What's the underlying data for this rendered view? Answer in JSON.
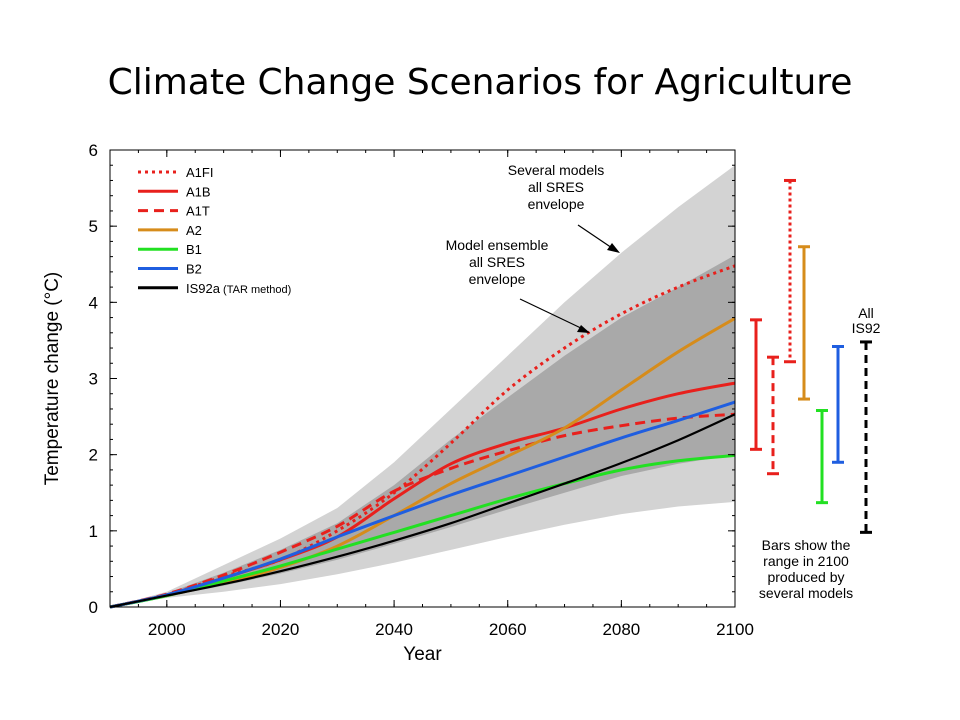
{
  "slide": {
    "title": "Climate Change Scenarios for Agriculture"
  },
  "chart_data": {
    "type": "line",
    "title": "",
    "xlabel": "Year",
    "ylabel": "Temperature change (°C)",
    "xlim": [
      1990,
      2100
    ],
    "ylim": [
      0,
      6
    ],
    "x_ticks": [
      2000,
      2020,
      2040,
      2060,
      2080,
      2100
    ],
    "y_ticks": [
      0,
      1,
      2,
      3,
      4,
      5,
      6
    ],
    "legend_position": "top-left",
    "series": [
      {
        "name": "A1FI",
        "color": "#e8201c",
        "dash": "dotted",
        "points": [
          [
            1990,
            0
          ],
          [
            2000,
            0.16
          ],
          [
            2010,
            0.4
          ],
          [
            2020,
            0.62
          ],
          [
            2030,
            1.0
          ],
          [
            2040,
            1.5
          ],
          [
            2050,
            2.15
          ],
          [
            2060,
            2.85
          ],
          [
            2070,
            3.4
          ],
          [
            2080,
            3.85
          ],
          [
            2090,
            4.2
          ],
          [
            2100,
            4.48
          ]
        ]
      },
      {
        "name": "A1B",
        "color": "#e8201c",
        "dash": "solid",
        "points": [
          [
            1990,
            0
          ],
          [
            2000,
            0.16
          ],
          [
            2010,
            0.38
          ],
          [
            2020,
            0.62
          ],
          [
            2030,
            0.92
          ],
          [
            2040,
            1.42
          ],
          [
            2050,
            1.88
          ],
          [
            2060,
            2.15
          ],
          [
            2070,
            2.35
          ],
          [
            2080,
            2.6
          ],
          [
            2090,
            2.8
          ],
          [
            2100,
            2.94
          ]
        ]
      },
      {
        "name": "A1T",
        "color": "#e8201c",
        "dash": "dashed",
        "points": [
          [
            1990,
            0
          ],
          [
            2000,
            0.17
          ],
          [
            2010,
            0.42
          ],
          [
            2020,
            0.72
          ],
          [
            2030,
            1.06
          ],
          [
            2040,
            1.52
          ],
          [
            2050,
            1.82
          ],
          [
            2060,
            2.05
          ],
          [
            2070,
            2.25
          ],
          [
            2080,
            2.38
          ],
          [
            2090,
            2.48
          ],
          [
            2100,
            2.53
          ]
        ]
      },
      {
        "name": "A2",
        "color": "#d68c1b",
        "dash": "solid",
        "points": [
          [
            1990,
            0
          ],
          [
            2000,
            0.15
          ],
          [
            2010,
            0.32
          ],
          [
            2020,
            0.52
          ],
          [
            2030,
            0.8
          ],
          [
            2040,
            1.2
          ],
          [
            2050,
            1.62
          ],
          [
            2060,
            1.98
          ],
          [
            2070,
            2.35
          ],
          [
            2080,
            2.85
          ],
          [
            2090,
            3.35
          ],
          [
            2100,
            3.79
          ]
        ]
      },
      {
        "name": "B1",
        "color": "#22e022",
        "dash": "solid",
        "points": [
          [
            1990,
            0
          ],
          [
            2000,
            0.15
          ],
          [
            2010,
            0.34
          ],
          [
            2020,
            0.54
          ],
          [
            2030,
            0.76
          ],
          [
            2040,
            0.98
          ],
          [
            2050,
            1.2
          ],
          [
            2060,
            1.42
          ],
          [
            2070,
            1.62
          ],
          [
            2080,
            1.8
          ],
          [
            2090,
            1.92
          ],
          [
            2100,
            1.99
          ]
        ]
      },
      {
        "name": "B2",
        "color": "#1f5ee0",
        "dash": "solid",
        "points": [
          [
            1990,
            0
          ],
          [
            2000,
            0.16
          ],
          [
            2010,
            0.38
          ],
          [
            2020,
            0.63
          ],
          [
            2030,
            0.92
          ],
          [
            2040,
            1.2
          ],
          [
            2050,
            1.47
          ],
          [
            2060,
            1.72
          ],
          [
            2070,
            1.97
          ],
          [
            2080,
            2.22
          ],
          [
            2090,
            2.45
          ],
          [
            2100,
            2.69
          ]
        ]
      },
      {
        "name": "IS92a",
        "legend_note": "(TAR method)",
        "color": "#000000",
        "dash": "solid",
        "points": [
          [
            1990,
            0
          ],
          [
            2000,
            0.15
          ],
          [
            2010,
            0.3
          ],
          [
            2020,
            0.47
          ],
          [
            2030,
            0.66
          ],
          [
            2040,
            0.87
          ],
          [
            2050,
            1.1
          ],
          [
            2060,
            1.36
          ],
          [
            2070,
            1.62
          ],
          [
            2080,
            1.89
          ],
          [
            2090,
            2.19
          ],
          [
            2100,
            2.53
          ]
        ]
      }
    ],
    "envelopes": [
      {
        "label": "Several models all SRES envelope",
        "color": "#d3d3d3",
        "upper": [
          [
            1990,
            0
          ],
          [
            2000,
            0.2
          ],
          [
            2010,
            0.55
          ],
          [
            2020,
            0.9
          ],
          [
            2030,
            1.3
          ],
          [
            2040,
            1.9
          ],
          [
            2050,
            2.6
          ],
          [
            2060,
            3.3
          ],
          [
            2070,
            4.0
          ],
          [
            2080,
            4.65
          ],
          [
            2090,
            5.25
          ],
          [
            2100,
            5.8
          ]
        ],
        "lower": [
          [
            1990,
            0
          ],
          [
            2000,
            0.12
          ],
          [
            2010,
            0.2
          ],
          [
            2020,
            0.3
          ],
          [
            2030,
            0.43
          ],
          [
            2040,
            0.58
          ],
          [
            2050,
            0.75
          ],
          [
            2060,
            0.92
          ],
          [
            2070,
            1.08
          ],
          [
            2080,
            1.22
          ],
          [
            2090,
            1.32
          ],
          [
            2100,
            1.38
          ]
        ]
      },
      {
        "label": "Model ensemble all SRES envelope",
        "color": "#a9a9a9",
        "upper": [
          [
            1990,
            0
          ],
          [
            2000,
            0.18
          ],
          [
            2010,
            0.45
          ],
          [
            2020,
            0.75
          ],
          [
            2030,
            1.1
          ],
          [
            2040,
            1.6
          ],
          [
            2050,
            2.2
          ],
          [
            2060,
            2.75
          ],
          [
            2070,
            3.3
          ],
          [
            2080,
            3.8
          ],
          [
            2090,
            4.2
          ],
          [
            2100,
            4.62
          ]
        ],
        "lower": [
          [
            1990,
            0
          ],
          [
            2000,
            0.14
          ],
          [
            2010,
            0.28
          ],
          [
            2020,
            0.44
          ],
          [
            2030,
            0.62
          ],
          [
            2040,
            0.83
          ],
          [
            2050,
            1.05
          ],
          [
            2060,
            1.28
          ],
          [
            2070,
            1.5
          ],
          [
            2080,
            1.72
          ],
          [
            2090,
            1.88
          ],
          [
            2100,
            2.0
          ]
        ]
      }
    ],
    "range_bars_2100": [
      {
        "series": "A1B",
        "color": "#e8201c",
        "dash": "solid",
        "low": 2.07,
        "high": 3.77
      },
      {
        "series": "A1T",
        "color": "#e8201c",
        "dash": "dashed",
        "low": 1.75,
        "high": 3.28
      },
      {
        "series": "A1FI",
        "color": "#e8201c",
        "dash": "dotted",
        "low": 3.22,
        "high": 5.6
      },
      {
        "series": "A2",
        "color": "#d68c1b",
        "dash": "solid",
        "low": 2.73,
        "high": 4.73
      },
      {
        "series": "B1",
        "color": "#22e022",
        "dash": "solid",
        "low": 1.37,
        "high": 2.58
      },
      {
        "series": "B2",
        "color": "#1f5ee0",
        "dash": "solid",
        "low": 1.9,
        "high": 3.42
      },
      {
        "series": "All IS92",
        "color": "#000000",
        "dash": "dashed",
        "low": 0.98,
        "high": 3.48
      }
    ],
    "annotations": {
      "several_models": [
        "Several models",
        "all SRES",
        "envelope"
      ],
      "model_ensemble": [
        "Model ensemble",
        "all SRES",
        "envelope"
      ],
      "all_is92": [
        "All",
        "IS92"
      ],
      "bars_note": [
        "Bars show the",
        "range in 2100",
        "produced by",
        "several models"
      ]
    }
  }
}
